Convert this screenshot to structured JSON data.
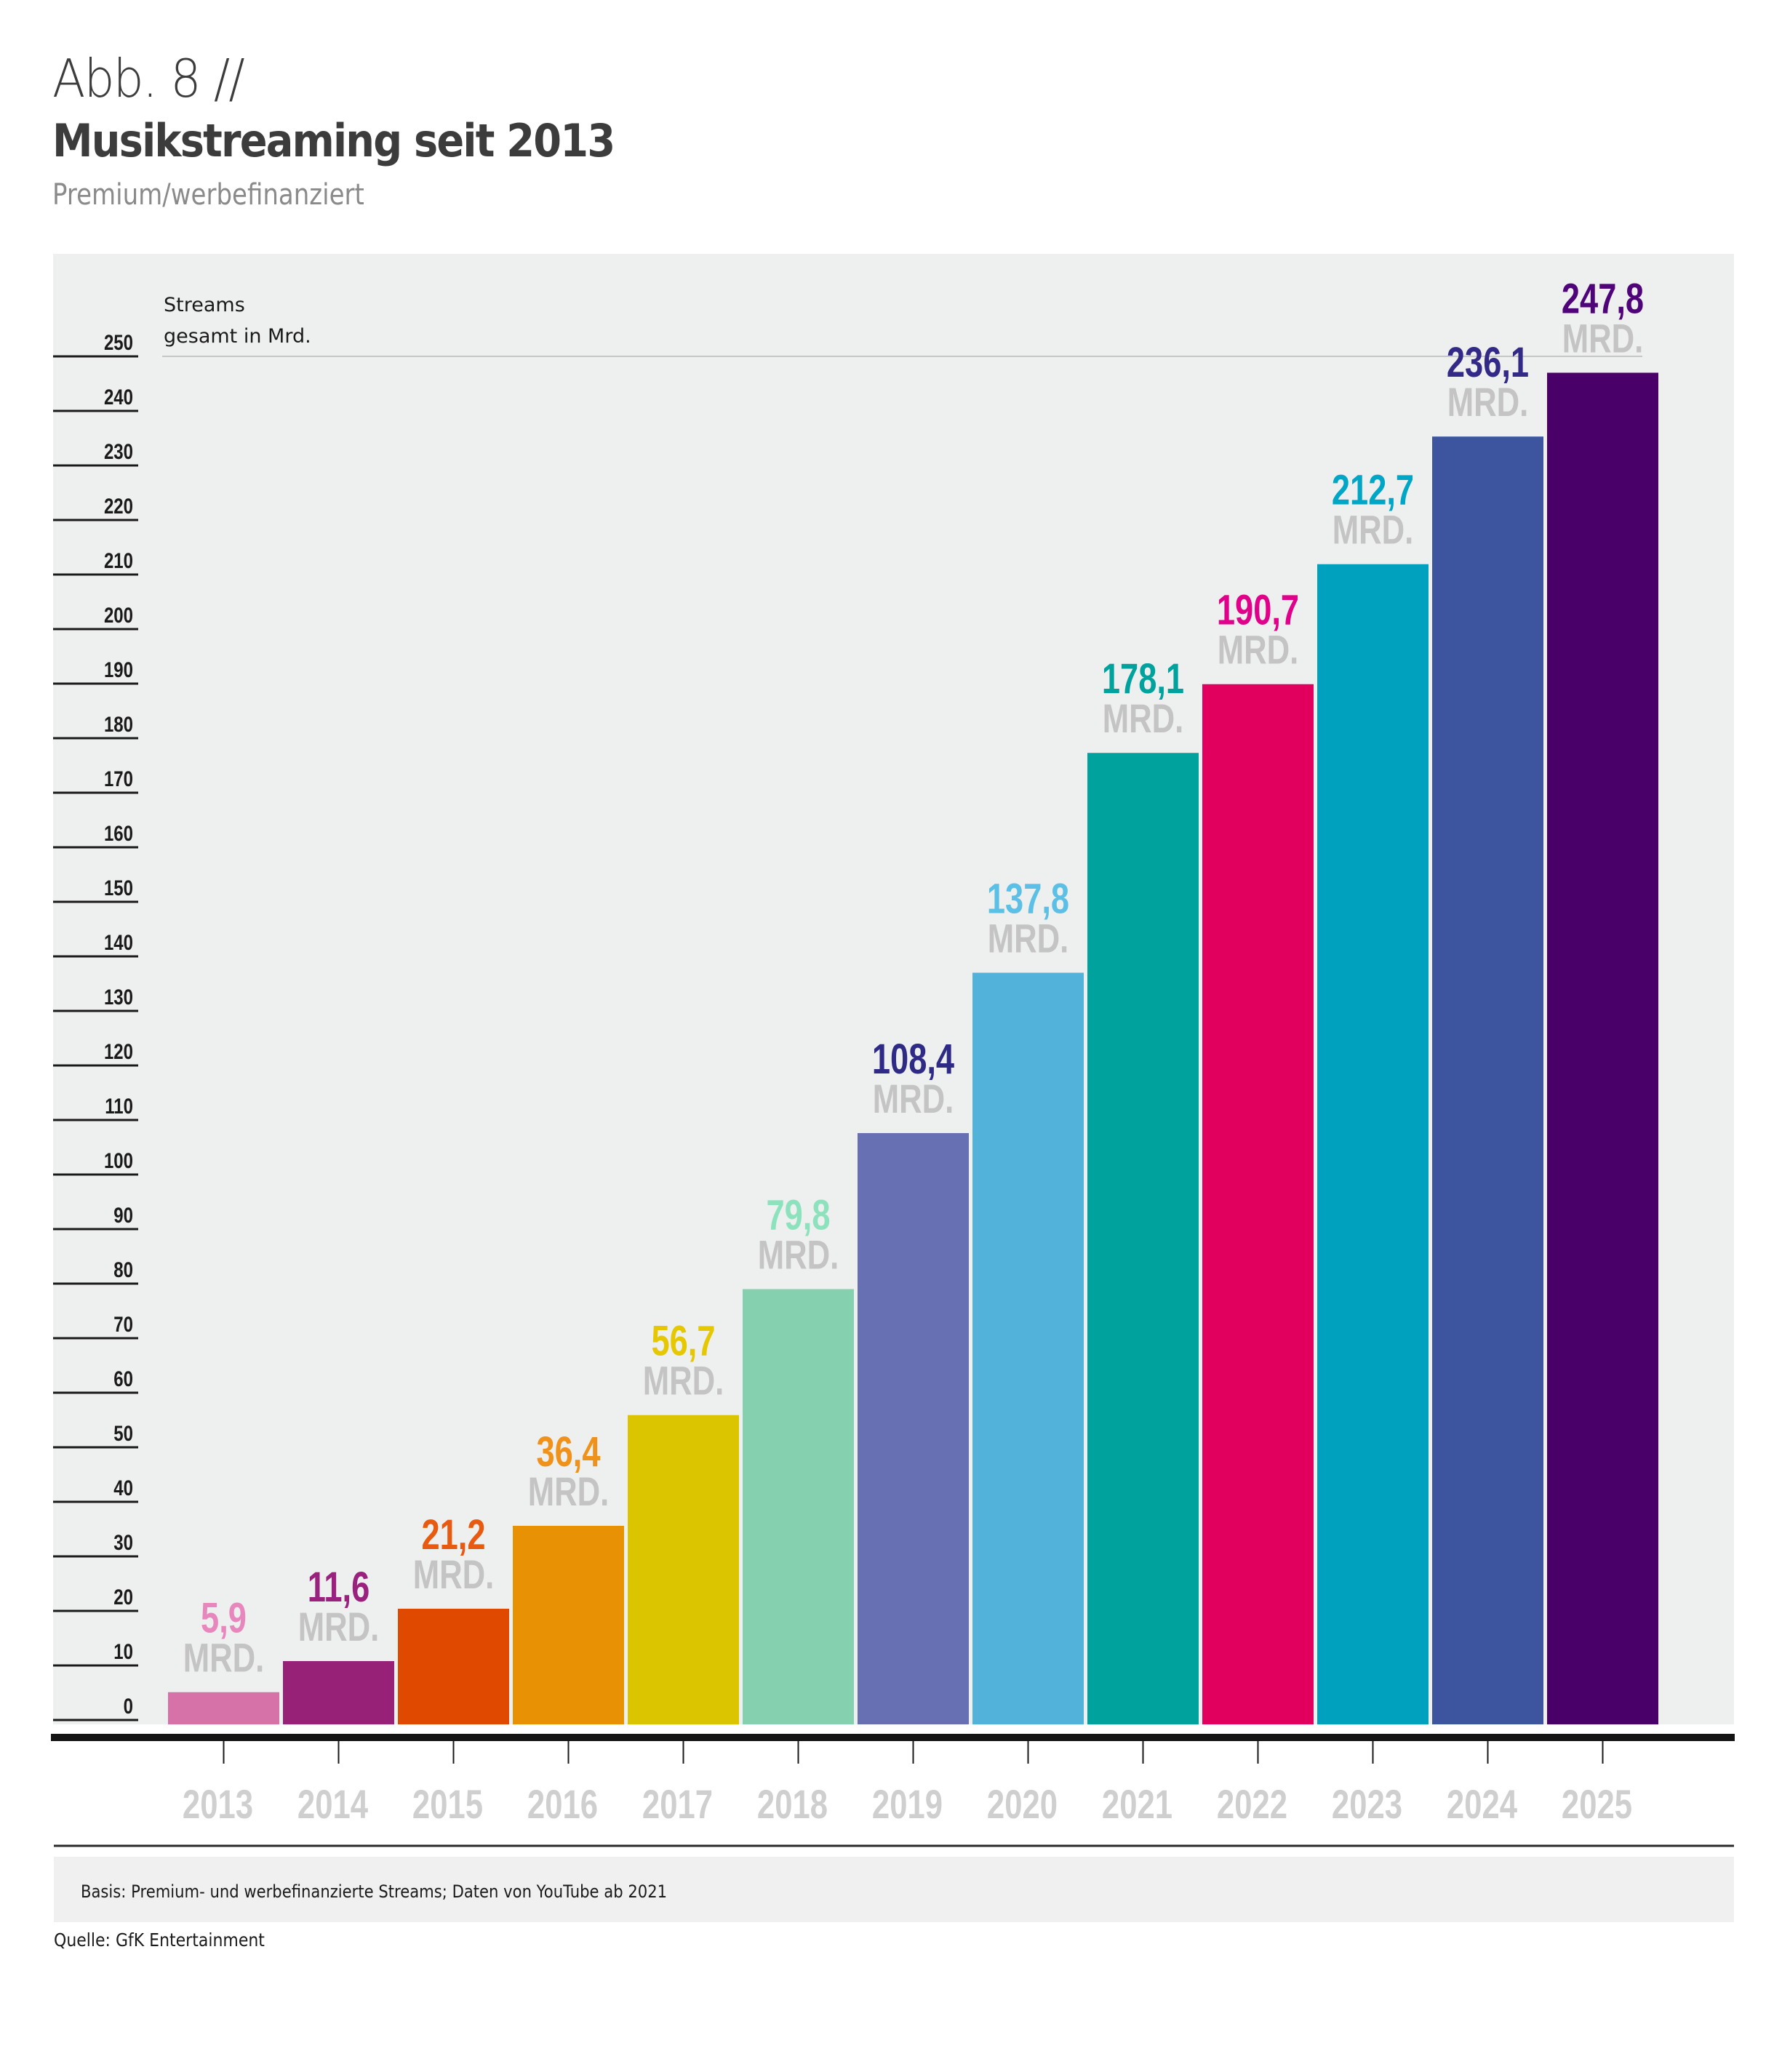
{
  "header": {
    "figure_label": "Abb. 8 //",
    "title": "Musikstreaming seit 2013",
    "subtitle": "Premium/werbefinanziert"
  },
  "footer": {
    "note": "Basis: Premium- und werbefinanzierte Streams; Daten von YouTube ab 2021",
    "source": "Quelle: GfK Entertainment"
  },
  "chart_data": {
    "type": "bar",
    "title": "Musikstreaming seit 2013",
    "subtitle": "Premium/werbefinanziert",
    "xlabel": "",
    "ylabel": "Streams gesamt in Mrd.",
    "ylabel_lines": [
      "Streams",
      "gesamt in Mrd."
    ],
    "ylim": [
      0,
      250
    ],
    "yticks": [
      0,
      10,
      20,
      30,
      40,
      50,
      60,
      70,
      80,
      90,
      100,
      110,
      120,
      130,
      140,
      150,
      160,
      170,
      180,
      190,
      200,
      210,
      220,
      230,
      240,
      250
    ],
    "reference_line": 250,
    "grid": false,
    "legend": "none",
    "unit_label": "MRD.",
    "categories": [
      "2013",
      "2014",
      "2015",
      "2016",
      "2017",
      "2018",
      "2019",
      "2020",
      "2021",
      "2022",
      "2023",
      "2024",
      "2025"
    ],
    "values": [
      5.9,
      11.6,
      21.2,
      36.4,
      56.7,
      79.8,
      108.4,
      137.8,
      178.1,
      190.7,
      212.7,
      236.1,
      247.8
    ],
    "value_labels": [
      "5,9",
      "11,6",
      "21,2",
      "36,4",
      "56,7",
      "79,8",
      "108,4",
      "137,8",
      "178,1",
      "190,7",
      "212,7",
      "236,1",
      "247,8"
    ],
    "bar_colors": [
      "#D672A8",
      "#962176",
      "#E04A00",
      "#E99104",
      "#DBC400",
      "#85D0AE",
      "#6870B4",
      "#52B2D9",
      "#00A29D",
      "#E2005E",
      "#00A1BF",
      "#3C559E",
      "#490068"
    ],
    "label_colors": [
      "#E887BD",
      "#9A217E",
      "#E85A10",
      "#F0921A",
      "#E6C800",
      "#8DE2BE",
      "#2E2A85",
      "#5CC0E6",
      "#00A29D",
      "#E1008A",
      "#00A6C6",
      "#322A86",
      "#50047A"
    ]
  }
}
